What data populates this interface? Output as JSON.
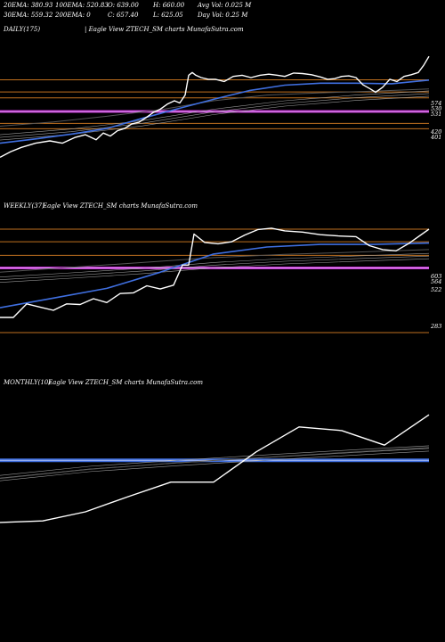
{
  "header": {
    "row1": [
      "20EMA: 380.93",
      "100EMA: 520.83",
      "O: 639.00",
      "H: 660.00",
      "Avg Vol: 0.025 M"
    ],
    "row2": [
      "30EMA: 559.32",
      "200EMA: 0",
      "C: 657.40",
      "L: 625.05",
      "Day Vol: 0.25 M"
    ]
  },
  "colors": {
    "background": "#000000",
    "price": "#ffffff",
    "ema_blue": "#3f6fe0",
    "ema_black": "#111111",
    "level_orange": "#c0711f",
    "level_magenta": "#c22bd0",
    "band_gray": "#9a9a9a"
  },
  "chart_data": [
    {
      "type": "line",
      "title": "DAILY(175)",
      "subtitle": "| Eagle   View  ZTECH_SM charts MunafaSutra.com",
      "ylim": [
        210,
        730
      ],
      "tick_labels": [
        "574",
        "530",
        "531",
        "420",
        "401"
      ],
      "levels": [
        {
          "value": 574,
          "kind": "orange"
        },
        {
          "value": 531,
          "kind": "orange"
        },
        {
          "value": 510,
          "kind": "orange"
        },
        {
          "value": 462,
          "kind": "magenta"
        },
        {
          "value": 420,
          "kind": "orange"
        },
        {
          "value": 401,
          "kind": "orange"
        }
      ],
      "series": [
        {
          "role": "price",
          "x": [
            0,
            12,
            24,
            40,
            56,
            70,
            84,
            96,
            108,
            116,
            124,
            132,
            140,
            148,
            156,
            164,
            172,
            180,
            188,
            196,
            202,
            208,
            212,
            216,
            220,
            226,
            234,
            242,
            252,
            262,
            272,
            282,
            292,
            302,
            312,
            320,
            330,
            340,
            350,
            360,
            368,
            376,
            384,
            392,
            400,
            408,
            416,
            422,
            430,
            438,
            446,
            454,
            462,
            470,
            476,
            482
          ],
          "y": [
            300,
            320,
            335,
            350,
            358,
            350,
            370,
            380,
            362,
            386,
            375,
            394,
            402,
            418,
            424,
            440,
            458,
            470,
            488,
            500,
            492,
            520,
            590,
            600,
            590,
            582,
            576,
            576,
            568,
            586,
            590,
            582,
            590,
            594,
            590,
            586,
            598,
            596,
            592,
            584,
            576,
            578,
            586,
            588,
            582,
            556,
            542,
            530,
            548,
            576,
            568,
            586,
            592,
            600,
            625,
            657
          ]
        },
        {
          "role": "ema_blue",
          "x": [
            0,
            40,
            80,
            120,
            160,
            200,
            240,
            280,
            320,
            360,
            400,
            440,
            482
          ],
          "y": [
            350,
            365,
            382,
            402,
            438,
            472,
            505,
            536,
            555,
            562,
            562,
            560,
            573
          ]
        },
        {
          "role": "ema_black",
          "x": [
            0,
            60,
            120,
            180,
            240,
            300,
            360,
            420,
            482
          ],
          "y": [
            410,
            425,
            445,
            468,
            500,
            520,
            528,
            534,
            542
          ]
        },
        {
          "role": "band",
          "x": [
            0,
            80,
            160,
            240,
            320,
            400,
            482
          ],
          "y": [
            380,
            400,
            430,
            470,
            500,
            520,
            535
          ]
        }
      ]
    },
    {
      "type": "line",
      "title": "WEEKLY(37)",
      "subtitle": "Eagle   View  ZTECH_SM charts MunafaSutra.com",
      "ylim": [
        250,
        650
      ],
      "tick_labels": [
        "603",
        "564",
        "522",
        "283"
      ],
      "levels": [
        {
          "value": 603,
          "kind": "orange"
        },
        {
          "value": 564,
          "kind": "orange"
        },
        {
          "value": 522,
          "kind": "orange"
        },
        {
          "value": 483,
          "kind": "magenta"
        },
        {
          "value": 283,
          "kind": "orange"
        }
      ],
      "series": [
        {
          "role": "price",
          "x": [
            0,
            15,
            30,
            45,
            60,
            75,
            90,
            105,
            120,
            135,
            150,
            165,
            180,
            195,
            205,
            212,
            218,
            230,
            245,
            260,
            275,
            290,
            305,
            320,
            340,
            360,
            380,
            400,
            415,
            430,
            445,
            460,
            482
          ],
          "y": [
            330,
            330,
            372,
            362,
            352,
            372,
            370,
            388,
            376,
            404,
            406,
            428,
            418,
            430,
            492,
            492,
            588,
            562,
            558,
            564,
            585,
            602,
            606,
            598,
            594,
            586,
            582,
            580,
            552,
            540,
            536,
            560,
            603
          ]
        },
        {
          "role": "ema_blue",
          "x": [
            0,
            60,
            120,
            180,
            240,
            300,
            360,
            420,
            482
          ],
          "y": [
            360,
            390,
            420,
            470,
            526,
            548,
            556,
            556,
            560
          ]
        },
        {
          "role": "ema_black",
          "x": [
            0,
            80,
            160,
            240,
            320,
            400,
            482
          ],
          "y": [
            470,
            485,
            500,
            515,
            525,
            532,
            540
          ]
        },
        {
          "role": "band",
          "x": [
            0,
            80,
            160,
            240,
            320,
            400,
            482
          ],
          "y": [
            455,
            468,
            482,
            500,
            512,
            520,
            528
          ]
        }
      ]
    },
    {
      "type": "line",
      "title": "MONTHLY(10)",
      "subtitle": "Eagle   View  ZTECH_SM charts MunafaSutra.com",
      "ylim": [
        200,
        700
      ],
      "tick_labels": [],
      "levels": [
        {
          "value": 470,
          "kind": "blue-band"
        }
      ],
      "series": [
        {
          "role": "price",
          "x": [
            0,
            48,
            96,
            144,
            192,
            240,
            288,
            336,
            384,
            432,
            482
          ],
          "y": [
            265,
            270,
            300,
            350,
            398,
            398,
            498,
            580,
            568,
            520,
            620
          ]
        },
        {
          "role": "band",
          "x": [
            0,
            100,
            200,
            300,
            400,
            482
          ],
          "y": [
            420,
            450,
            470,
            488,
            505,
            518
          ]
        },
        {
          "role": "ema_black",
          "x": [
            0,
            100,
            200,
            300,
            400,
            482
          ],
          "y": [
            410,
            440,
            462,
            480,
            498,
            512
          ]
        }
      ]
    }
  ]
}
